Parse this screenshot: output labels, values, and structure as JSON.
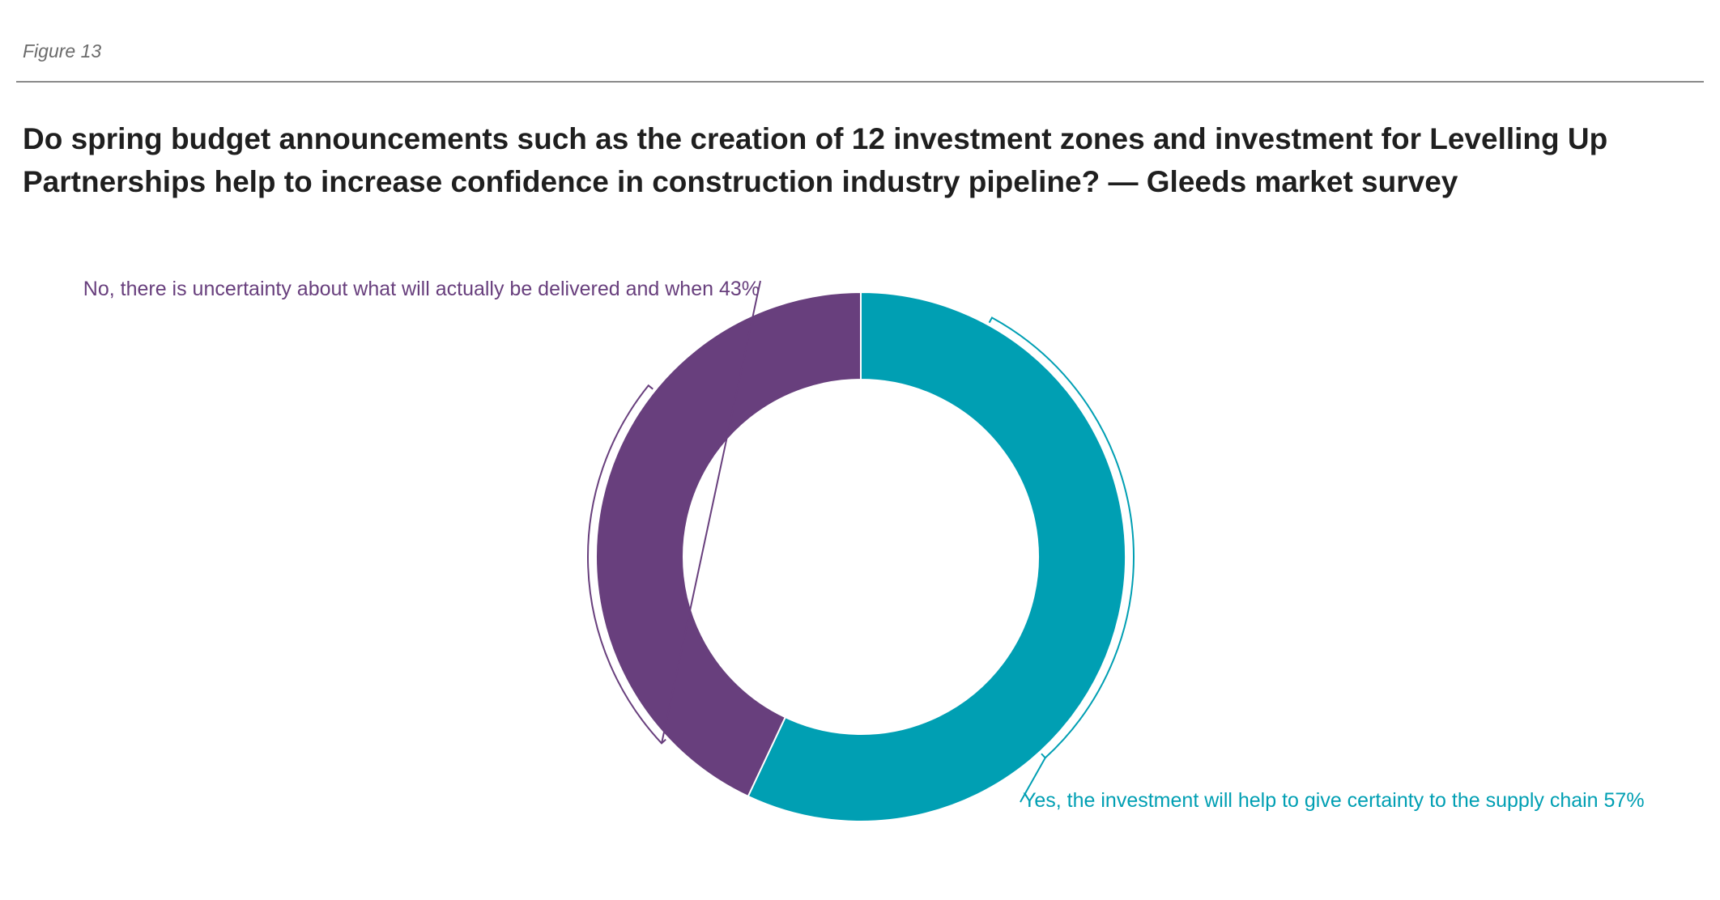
{
  "figure_label": "Figure 13",
  "colors": {
    "no": "#683f7d",
    "yes": "#009fb3",
    "title": "#1f1f1f",
    "rule": "#8a8a8a"
  },
  "chart_data": {
    "type": "pie",
    "variant": "donut",
    "title": "Do spring budget announcements such as the creation of 12 investment zones and investment for Levelling Up Partnerships help to increase confidence in construction industry pipeline? — Gleeds market survey",
    "slices": [
      {
        "label": "Yes, the investment will help to give certainty to the supply chain 57%",
        "value": 57,
        "color": "#009fb3"
      },
      {
        "label": "No, there is uncertainty about what will actually be delivered and when 43%",
        "value": 43,
        "color": "#683f7d"
      }
    ]
  }
}
